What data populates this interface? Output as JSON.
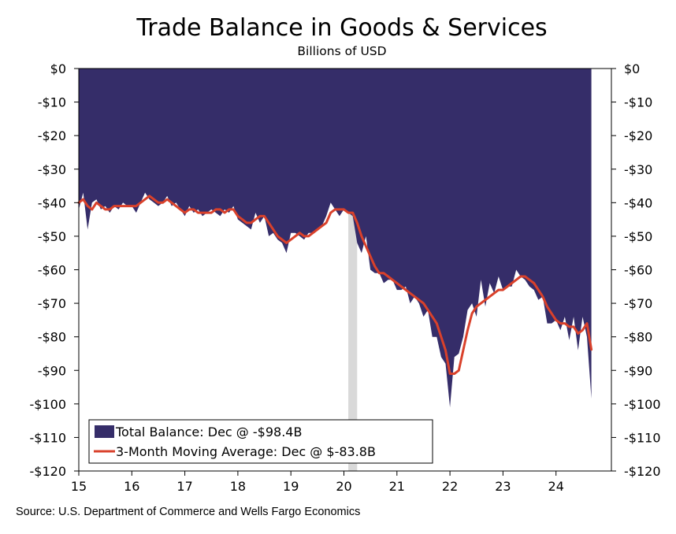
{
  "chart_data": {
    "type": "area",
    "title": "Trade Balance in Goods & Services",
    "subtitle": "Billions of USD",
    "source": "Source: U.S. Department of Commerce and Wells Fargo Economics",
    "ylim": [
      -120,
      0
    ],
    "y_ticks": [
      0,
      -10,
      -20,
      -30,
      -40,
      -50,
      -60,
      -70,
      -80,
      -90,
      -100,
      -110,
      -120
    ],
    "y_tick_labels": [
      "$0",
      "-$10",
      "-$20",
      "-$30",
      "-$40",
      "-$50",
      "-$60",
      "-$70",
      "-$80",
      "-$90",
      "-$100",
      "-$110",
      "-$120"
    ],
    "x_tick_labels": [
      "15",
      "16",
      "17",
      "18",
      "19",
      "20",
      "21",
      "22",
      "23",
      "24"
    ],
    "x_range": [
      "2015-01",
      "2024-12"
    ],
    "grid": false,
    "legend_position": "bottom-left",
    "recession_shading": {
      "start": "2020-02",
      "end": "2020-04",
      "color": "#d9d9d9"
    },
    "colors": {
      "area": "#352D69",
      "line": "#D9412B",
      "shading": "#D9D9D9"
    },
    "series": [
      {
        "name": "Total Balance: Dec @ -$98.4B",
        "type": "area",
        "start": "2015-01",
        "frequency": "monthly",
        "values": [
          -42,
          -37,
          -48,
          -40,
          -39,
          -42,
          -41,
          -43,
          -41,
          -42,
          -40,
          -41,
          -41,
          -43,
          -40,
          -37,
          -39,
          -40,
          -41,
          -40,
          -38,
          -41,
          -40,
          -42,
          -44,
          -41,
          -43,
          -42,
          -44,
          -43,
          -42,
          -43,
          -44,
          -42,
          -43,
          -41,
          -45,
          -46,
          -47,
          -48,
          -43,
          -46,
          -44,
          -50,
          -49,
          -51,
          -52,
          -55,
          -49,
          -49,
          -50,
          -51,
          -49,
          -49,
          -48,
          -47,
          -44,
          -40,
          -42,
          -44,
          -42,
          -43,
          -44,
          -52,
          -55,
          -50,
          -60,
          -61,
          -61,
          -64,
          -63,
          -63,
          -66,
          -66,
          -65,
          -70,
          -68,
          -70,
          -74,
          -72,
          -80,
          -80,
          -86,
          -88,
          -101,
          -86,
          -85,
          -80,
          -72,
          -70,
          -74,
          -63,
          -71,
          -64,
          -67,
          -62,
          -66,
          -65,
          -65,
          -60,
          -62,
          -63,
          -65,
          -66,
          -69,
          -68,
          -76,
          -76,
          -75,
          -78,
          -74,
          -81,
          -74,
          -84,
          -74,
          -80,
          -98.4
        ]
      },
      {
        "name": "3-Month Moving Average: Dec @ $-83.8B",
        "type": "line",
        "start": "2015-01",
        "frequency": "monthly",
        "values": [
          -40,
          -39,
          -41,
          -42,
          -40,
          -41,
          -42,
          -42,
          -41,
          -41,
          -41,
          -41,
          -41,
          -41,
          -40,
          -39,
          -38,
          -39,
          -40,
          -40,
          -39,
          -40,
          -41,
          -42,
          -43,
          -42,
          -42,
          -43,
          -43,
          -43,
          -43,
          -42,
          -42,
          -43,
          -42,
          -42,
          -44,
          -45,
          -46,
          -46,
          -45,
          -44,
          -44,
          -46,
          -48,
          -50,
          -51,
          -52,
          -51,
          -50,
          -49,
          -50,
          -50,
          -49,
          -48,
          -47,
          -46,
          -43,
          -42,
          -42,
          -42,
          -43,
          -43,
          -46,
          -50,
          -53,
          -56,
          -59,
          -61,
          -61,
          -62,
          -63,
          -64,
          -65,
          -66,
          -67,
          -68,
          -69,
          -70,
          -72,
          -74,
          -76,
          -80,
          -84,
          -91,
          -91,
          -90,
          -84,
          -78,
          -73,
          -71,
          -70,
          -69,
          -68,
          -67,
          -66,
          -66,
          -65,
          -64,
          -63,
          -62,
          -62,
          -63,
          -64,
          -66,
          -68,
          -71,
          -73,
          -75,
          -76,
          -76,
          -77,
          -77,
          -79,
          -78,
          -76,
          -83.8
        ]
      }
    ]
  }
}
